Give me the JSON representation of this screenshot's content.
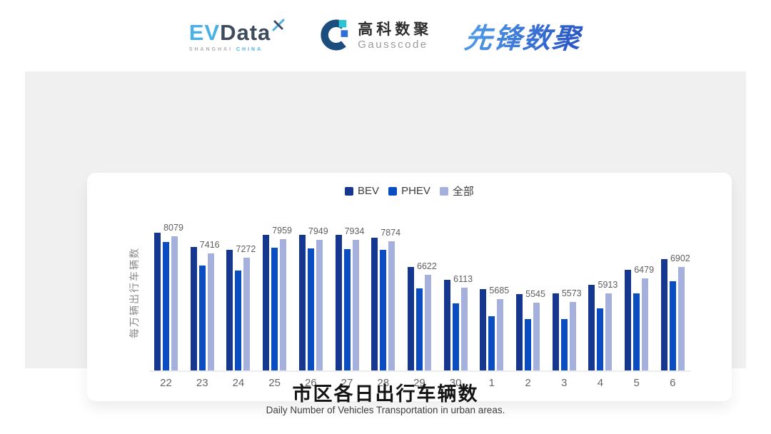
{
  "header": {
    "logos": {
      "evdata": {
        "ev": "EV",
        "data": "Data",
        "sub1": "SHANGHAI",
        "sub2": "CHINA"
      },
      "gausscode": {
        "cn": "高科数聚",
        "en": "Gausscode"
      },
      "xianfeng": {
        "text": "先锋数聚"
      }
    }
  },
  "chart_data": {
    "type": "bar",
    "categories": [
      "22",
      "23",
      "24",
      "25",
      "26",
      "27",
      "28",
      "29",
      "30",
      "1",
      "2",
      "3",
      "4",
      "5",
      "6"
    ],
    "series": [
      {
        "key": "bev",
        "name": "BEV",
        "color": "#16378f",
        "values": [
          8210,
          7660,
          7550,
          8140,
          8120,
          8130,
          8030,
          6920,
          6420,
          6060,
          5880,
          5910,
          6230,
          6790,
          7200
        ]
      },
      {
        "key": "phev",
        "name": "PHEV",
        "color": "#0a4dc2",
        "values": [
          7850,
          6960,
          6770,
          7640,
          7620,
          7600,
          7560,
          6100,
          5530,
          5050,
          4920,
          4930,
          5330,
          5910,
          6360
        ]
      },
      {
        "key": "all",
        "name": "全部",
        "color": "#a5b0dc",
        "values": [
          8079,
          7416,
          7272,
          7959,
          7949,
          7934,
          7874,
          6622,
          6113,
          5685,
          5545,
          5573,
          5913,
          6479,
          6902
        ],
        "data_labels_shown": true
      }
    ],
    "value_labels": [
      8079,
      7416,
      7272,
      7959,
      7949,
      7934,
      7874,
      6622,
      6113,
      5685,
      5545,
      5573,
      5913,
      6479,
      6902
    ],
    "ylabel": "每万辆出行车辆数",
    "xlabel": "",
    "ylim": [
      2980,
      8400
    ],
    "grid": false,
    "legend_position": "top"
  },
  "footer": {
    "title": "市区各日出行车辆数",
    "subtitle": "Daily Number of Vehicles Transportation in urban areas."
  },
  "colors": {
    "panel_bg": "#f0f0f1",
    "card_bg": "#ffffff",
    "axis_line": "#ececec",
    "bev": "#16378f",
    "phev": "#0a4dc2",
    "all": "#a5b0dc",
    "evdata_blue": "#49b0e8",
    "evdata_dark": "#3d4b5c",
    "gausscode_dark": "#1b4e7c",
    "gausscode_cyan": "#2cc3d3",
    "gausscode_blue": "#2e6fd8",
    "xianfeng_blue": "#2f6fd3"
  }
}
